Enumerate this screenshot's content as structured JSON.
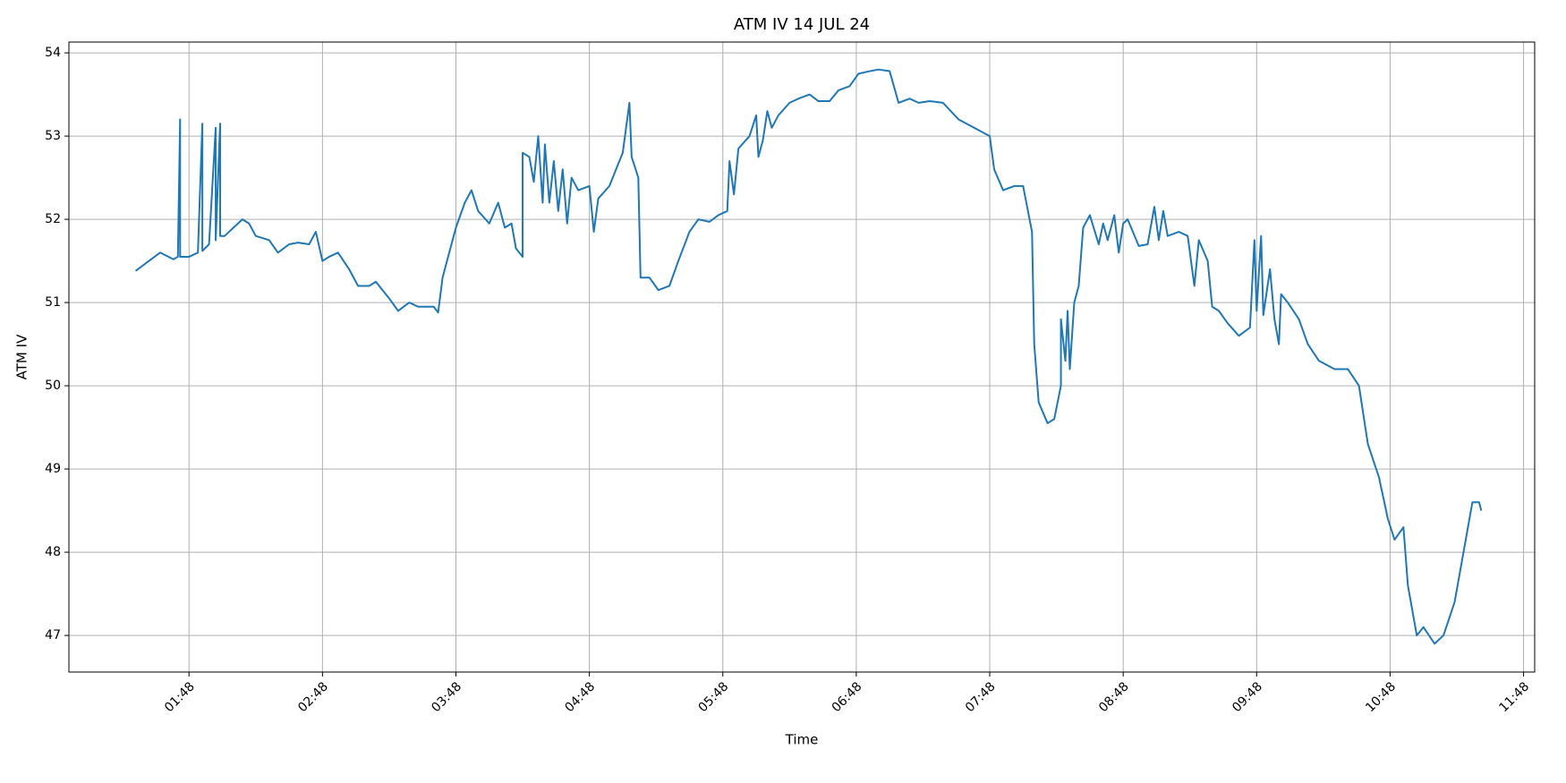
{
  "chart_data": {
    "type": "line",
    "title": "ATM IV 14 JUL 24",
    "x_label": "Time",
    "y_label": "ATM IV",
    "color": "#1f77b4",
    "grid": true,
    "xlim": [
      "00:54",
      "11:53"
    ],
    "ylim": [
      46.56,
      54.13
    ],
    "xticks": [
      "01:48",
      "02:48",
      "03:48",
      "04:48",
      "05:48",
      "06:48",
      "07:48",
      "08:48",
      "09:48",
      "10:48",
      "11:48"
    ],
    "yticks": [
      47,
      48,
      49,
      50,
      51,
      52,
      53,
      54
    ],
    "x": [
      "01:24",
      "01:30",
      "01:35",
      "01:41",
      "01:43",
      "01:44",
      "01:44",
      "01:48",
      "01:52",
      "01:54",
      "01:54",
      "01:57",
      "02:00",
      "02:00",
      "02:02",
      "02:02",
      "02:04",
      "02:08",
      "02:12",
      "02:15",
      "02:18",
      "02:24",
      "02:28",
      "02:33",
      "02:37",
      "02:42",
      "02:45",
      "02:48",
      "02:51",
      "02:55",
      "03:00",
      "03:04",
      "03:09",
      "03:12",
      "03:18",
      "03:22",
      "03:27",
      "03:31",
      "03:38",
      "03:40",
      "03:42",
      "03:45",
      "03:48",
      "03:52",
      "03:55",
      "03:58",
      "04:03",
      "04:07",
      "04:10",
      "04:13",
      "04:15",
      "04:18",
      "04:18",
      "04:21",
      "04:23",
      "04:25",
      "04:27",
      "04:28",
      "04:30",
      "04:32",
      "04:34",
      "04:36",
      "04:38",
      "04:40",
      "04:43",
      "04:48",
      "04:50",
      "04:52",
      "04:57",
      "05:00",
      "05:03",
      "05:06",
      "05:07",
      "05:10",
      "05:11",
      "05:15",
      "05:19",
      "05:24",
      "05:28",
      "05:33",
      "05:37",
      "05:42",
      "05:46",
      "05:50",
      "05:51",
      "05:53",
      "05:55",
      "06:00",
      "06:03",
      "06:04",
      "06:06",
      "06:08",
      "06:10",
      "06:13",
      "06:18",
      "06:22",
      "06:27",
      "06:31",
      "06:36",
      "06:40",
      "06:45",
      "06:49",
      "06:54",
      "06:58",
      "07:03",
      "07:07",
      "07:12",
      "07:16",
      "07:21",
      "07:27",
      "07:34",
      "07:41",
      "07:48",
      "07:50",
      "07:54",
      "07:59",
      "08:03",
      "08:07",
      "08:08",
      "08:10",
      "08:14",
      "08:17",
      "08:20",
      "08:20",
      "08:22",
      "08:23",
      "08:24",
      "08:26",
      "08:28",
      "08:30",
      "08:33",
      "08:37",
      "08:39",
      "08:41",
      "08:44",
      "08:46",
      "08:48",
      "08:50",
      "08:55",
      "08:59",
      "09:02",
      "09:04",
      "09:06",
      "09:08",
      "09:13",
      "09:17",
      "09:20",
      "09:22",
      "09:26",
      "09:28",
      "09:31",
      "09:35",
      "09:40",
      "09:45",
      "09:47",
      "09:48",
      "09:50",
      "09:51",
      "09:54",
      "09:56",
      "09:58",
      "09:59",
      "10:02",
      "10:07",
      "10:11",
      "10:16",
      "10:23",
      "10:29",
      "10:34",
      "10:38",
      "10:43",
      "10:47",
      "10:50",
      "10:54",
      "10:56",
      "11:00",
      "11:03",
      "11:08",
      "11:12",
      "11:17",
      "11:21",
      "11:25",
      "11:28",
      "11:29"
    ],
    "values": [
      51.38,
      51.5,
      51.6,
      51.52,
      51.55,
      53.2,
      51.55,
      51.55,
      51.6,
      53.15,
      51.62,
      51.7,
      53.1,
      51.75,
      53.15,
      51.8,
      51.8,
      51.9,
      52.0,
      51.95,
      51.8,
      51.75,
      51.6,
      51.7,
      51.72,
      51.7,
      51.85,
      51.5,
      51.55,
      51.6,
      51.4,
      51.2,
      51.2,
      51.25,
      51.05,
      50.9,
      51.0,
      50.95,
      50.95,
      50.88,
      51.3,
      51.6,
      51.9,
      52.2,
      52.35,
      52.1,
      51.95,
      52.2,
      51.9,
      51.95,
      51.65,
      51.55,
      52.8,
      52.75,
      52.45,
      53.0,
      52.2,
      52.9,
      52.2,
      52.7,
      52.1,
      52.6,
      51.95,
      52.5,
      52.35,
      52.4,
      51.85,
      52.25,
      52.4,
      52.6,
      52.8,
      53.4,
      52.75,
      52.5,
      51.3,
      51.3,
      51.15,
      51.2,
      51.5,
      51.85,
      52.0,
      51.97,
      52.05,
      52.1,
      52.7,
      52.3,
      52.85,
      53.0,
      53.25,
      52.75,
      52.95,
      53.3,
      53.1,
      53.25,
      53.4,
      53.45,
      53.5,
      53.42,
      53.42,
      53.55,
      53.6,
      53.75,
      53.78,
      53.8,
      53.78,
      53.4,
      53.45,
      53.4,
      53.42,
      53.4,
      53.2,
      53.1,
      53.0,
      52.6,
      52.35,
      52.4,
      52.4,
      51.85,
      50.5,
      49.8,
      49.55,
      49.6,
      50.0,
      50.8,
      50.3,
      50.9,
      50.2,
      51.0,
      51.2,
      51.9,
      52.05,
      51.7,
      51.95,
      51.75,
      52.05,
      51.6,
      51.95,
      52.0,
      51.68,
      51.7,
      52.15,
      51.75,
      52.1,
      51.8,
      51.85,
      51.8,
      51.2,
      51.75,
      51.5,
      50.95,
      50.9,
      50.75,
      50.6,
      50.7,
      51.75,
      50.9,
      51.8,
      50.85,
      51.4,
      50.8,
      50.5,
      51.1,
      51.0,
      50.8,
      50.5,
      50.3,
      50.2,
      50.2,
      50.0,
      49.3,
      48.9,
      48.4,
      48.15,
      48.3,
      47.6,
      47.0,
      47.1,
      46.9,
      47.0,
      47.4,
      48.0,
      48.6,
      48.6,
      48.5
    ]
  }
}
